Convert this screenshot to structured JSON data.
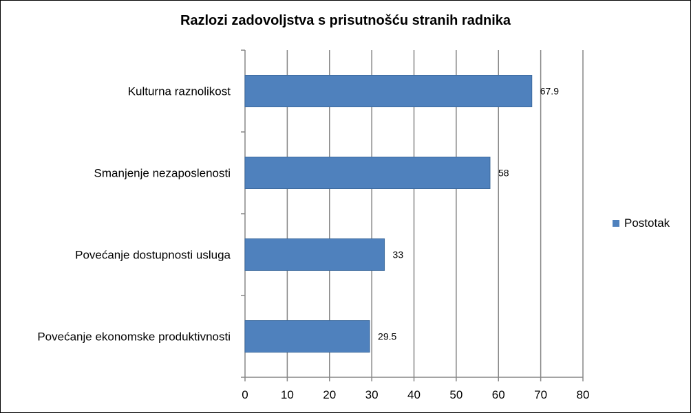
{
  "chart_data": {
    "type": "bar",
    "orientation": "horizontal",
    "title": "Razlozi zadovoljstva s prisutnošću stranih radnika",
    "categories": [
      "Kulturna raznolikost",
      "Smanjenje nezaposlenosti",
      "Povećanje dostupnosti usluga",
      "Povećanje ekonomske produktivnosti"
    ],
    "series": [
      {
        "name": "Postotak",
        "values": [
          67.9,
          58,
          33,
          29.5
        ],
        "color": "#4F81BD"
      }
    ],
    "data_labels": [
      "67.9",
      "58",
      "33",
      "29.5"
    ],
    "xlim": [
      0,
      80
    ],
    "xticks": [
      0,
      10,
      20,
      30,
      40,
      50,
      60,
      70,
      80
    ],
    "xlabel": "",
    "ylabel": "",
    "grid": "vertical",
    "legend_position": "right"
  }
}
